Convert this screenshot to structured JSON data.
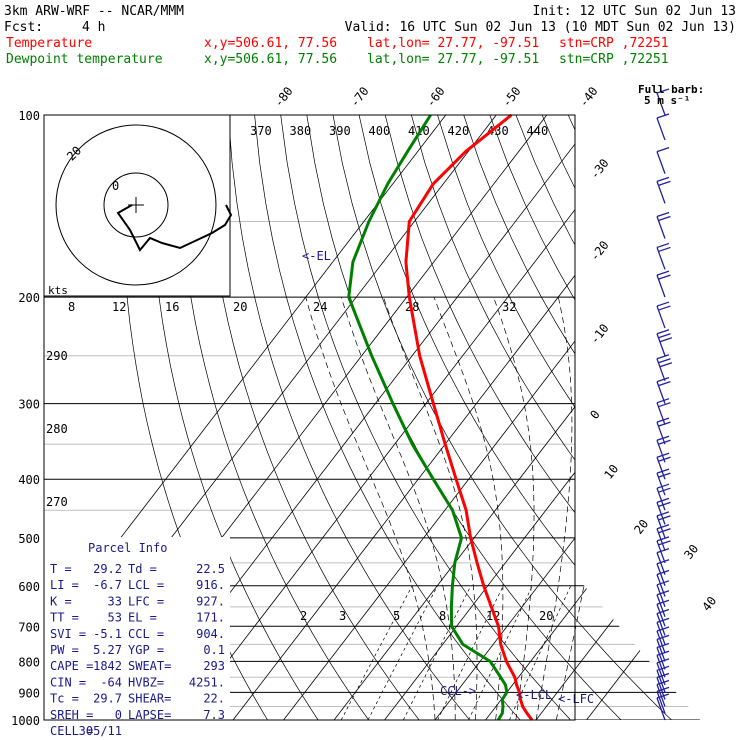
{
  "header": {
    "model": "3km ARW-WRF -- NCAR/MMM",
    "init": "Init: 12 UTC Sun 02 Jun 13",
    "fcst_label": "Fcst:",
    "fcst_value": "4 h",
    "valid": "Valid: 16 UTC Sun 02 Jun 13 (10 MDT Sun 02 Jun 13)",
    "temp_line": {
      "name": "Temperature",
      "xy": "x,y=506.61, 77.56",
      "latlon": "lat,lon= 27.77, -97.51",
      "stn": "stn=CRP ,72251"
    },
    "dew_line": {
      "name": "Dewpoint temperature",
      "xy": "x,y=506.61, 77.56",
      "latlon": "lat,lon= 27.77, -97.51",
      "stn": "stn=CRP ,72251"
    }
  },
  "colors": {
    "temperature": "#ff0000",
    "dewpoint": "#008000",
    "barbs": "#2020a0",
    "parcel_text": "#1a1a8c"
  },
  "barb_legend": {
    "line1": "Full barb:",
    "line2": "5 m s⁻¹"
  },
  "hodograph": {
    "unit_label": "kts",
    "ring_labels": [
      "0",
      "20"
    ]
  },
  "labels": {
    "el": "<-EL",
    "lcl": "<-LCL",
    "lfc": "<-LFC",
    "ccl": "CCL->"
  },
  "parcel_info": {
    "title": "Parcel Info",
    "rows": [
      {
        "k1": "T  =",
        "v1": "29.2",
        "k2": "Td =",
        "v2": "22.5"
      },
      {
        "k1": "LI =",
        "v1": "-6.7",
        "k2": "LCL =",
        "v2": "916."
      },
      {
        "k1": "K  =",
        "v1": "33",
        "k2": "LFC =",
        "v2": "927."
      },
      {
        "k1": "TT =",
        "v1": "53",
        "k2": "EL  =",
        "v2": "171."
      },
      {
        "k1": "SVI =",
        "v1": "-5.1",
        "k2": "CCL =",
        "v2": "904."
      },
      {
        "k1": "PW =",
        "v1": "5.27",
        "k2": "YGP =",
        "v2": "0.1"
      },
      {
        "k1": "CAPE =",
        "v1": "1842",
        "k2": "SWEAT=",
        "v2": "293"
      },
      {
        "k1": "CIN =",
        "v1": "-64",
        "k2": "HVBZ=",
        "v2": "4251."
      },
      {
        "k1": "Tc =",
        "v1": "29.7",
        "k2": "SHEAR=",
        "v2": "22."
      },
      {
        "k1": "SREH =",
        "v1": "0",
        "k2": "LAPSE=",
        "v2": "7.3"
      },
      {
        "k1": "CELL =",
        "v1": "305/11",
        "k2": "",
        "v2": ""
      }
    ]
  },
  "chart_data": {
    "type": "line",
    "chart_kind": "skew-T log-P",
    "ylabel": "",
    "xlabel": "",
    "pressure_levels_hPa": [
      100,
      200,
      300,
      400,
      500,
      600,
      700,
      800,
      900,
      1000
    ],
    "pressure_range_hPa": [
      100,
      1000
    ],
    "y_scale": "log",
    "isotherm_labels_C": [
      "-80",
      "-70",
      "-60",
      "-50",
      "-40",
      "-30",
      "-20",
      "-10",
      "0",
      "10",
      "20",
      "30",
      "40"
    ],
    "isotherms_C": [
      -80,
      -70,
      -60,
      -50,
      -40,
      -30,
      -20,
      -10,
      0,
      10,
      20,
      30,
      40
    ],
    "theta_labels_K": [
      "370",
      "380",
      "390",
      "400",
      "410",
      "420",
      "430",
      "440"
    ],
    "dry_adiabat_labels_K": [
      "290",
      "280",
      "270"
    ],
    "mixing_ratio_labels_gkg": [
      "2",
      "3",
      "5",
      "8",
      "12",
      "20"
    ],
    "hodograph_speed_labels_kts": [
      "8",
      "12",
      "16",
      "20",
      "24",
      "28",
      "32"
    ],
    "series": [
      {
        "name": "Temperature",
        "pressure_hPa": [
          1000,
          975,
          950,
          925,
          900,
          875,
          850,
          800,
          750,
          700,
          650,
          600,
          550,
          500,
          450,
          400,
          350,
          300,
          250,
          200,
          175,
          150,
          130,
          115,
          100
        ],
        "temperature_C": [
          29.2,
          27.2,
          25.3,
          23.8,
          22.5,
          20.8,
          19.3,
          15.2,
          11.5,
          8.3,
          3.9,
          -0.8,
          -5.6,
          -10.7,
          -15.8,
          -22.5,
          -30.0,
          -38.5,
          -48.5,
          -59.5,
          -65.5,
          -71.0,
          -72.0,
          -70.5,
          -67.0
        ]
      },
      {
        "name": "Dewpoint temperature",
        "pressure_hPa": [
          1000,
          975,
          950,
          925,
          900,
          875,
          850,
          800,
          750,
          700,
          650,
          600,
          550,
          500,
          450,
          400,
          350,
          300,
          250,
          200,
          175,
          150,
          130,
          115,
          100
        ],
        "temperature_C": [
          22.5,
          22.3,
          21.4,
          20.2,
          20.0,
          18.6,
          16.5,
          12.0,
          4.0,
          -1.0,
          -4.0,
          -7.0,
          -10.0,
          -12.5,
          -18.5,
          -27.0,
          -36.5,
          -46.5,
          -58.0,
          -71.5,
          -76.0,
          -79.0,
          -81.0,
          -82.0,
          -83.0
        ]
      }
    ],
    "wind_barbs": {
      "unit": "m s-1",
      "pressure_hPa": [
        1000,
        975,
        950,
        925,
        900,
        875,
        850,
        825,
        800,
        775,
        750,
        725,
        700,
        675,
        650,
        625,
        600,
        575,
        550,
        525,
        500,
        475,
        450,
        425,
        400,
        375,
        350,
        325,
        300,
        275,
        250,
        225,
        200,
        180,
        160,
        140,
        125,
        110,
        100
      ],
      "speed_ms": [
        3,
        4,
        4,
        5,
        5,
        5,
        5,
        5,
        4,
        4,
        4,
        5,
        5,
        6,
        6,
        6,
        7,
        7,
        8,
        8,
        9,
        9,
        10,
        10,
        11,
        11,
        12,
        12,
        12,
        13,
        13,
        12,
        11,
        10,
        9,
        8,
        7,
        6,
        5
      ],
      "direction_deg": [
        150,
        155,
        160,
        165,
        170,
        175,
        180,
        190,
        200,
        210,
        220,
        230,
        240,
        245,
        250,
        255,
        260,
        262,
        265,
        268,
        270,
        270,
        272,
        272,
        275,
        275,
        275,
        276,
        278,
        278,
        280,
        280,
        280,
        280,
        282,
        282,
        285,
        285,
        285
      ]
    }
  }
}
